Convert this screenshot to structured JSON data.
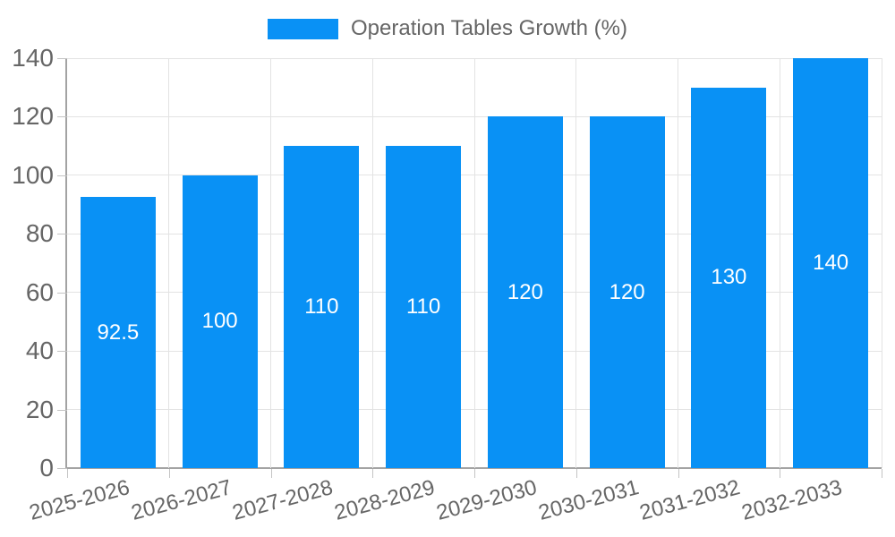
{
  "chart_data": {
    "type": "bar",
    "title": "Operation Tables Growth (%)",
    "legend": {
      "label": "Operation Tables Growth (%)",
      "position": "top"
    },
    "categories": [
      "2025-2026",
      "2026-2027",
      "2027-2028",
      "2028-2029",
      "2029-2030",
      "2030-2031",
      "2031-2032",
      "2032-2033"
    ],
    "values": [
      92.5,
      100,
      110,
      110,
      120,
      120,
      130,
      140
    ],
    "xlabel": "",
    "ylabel": "",
    "ylim": [
      0,
      140
    ],
    "yticks": [
      0,
      20,
      40,
      60,
      80,
      100,
      120,
      140
    ],
    "grid": true,
    "bar_width_ratio": 0.74,
    "x_label_rotation_deg": -15,
    "colors": {
      "bar": "#0991f5",
      "grid": "#e3e3e3",
      "axis": "#a3a3a3",
      "tick_label": "#666666",
      "legend_text": "#666666",
      "value_label": "#ffffff",
      "background": "#ffffff"
    }
  }
}
